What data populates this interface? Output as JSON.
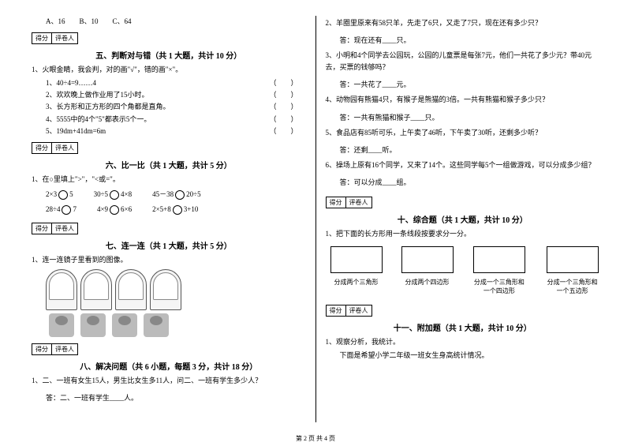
{
  "options_line": "A、16　　B、10　　C、64",
  "score_header": {
    "left": "得分",
    "right": "评卷人"
  },
  "sec5": {
    "title": "五、判断对与错（共 1 大题，共计 10 分）",
    "q1": "1、火眼金睛，我会判，对的画\"√\"，错的画\"×\"。",
    "items": [
      "1、40÷4=9……4",
      "2、欢欢晚上做作业用了15小时。",
      "3、长方形和正方形的四个角都是直角。",
      "4、5555中的4个\"5\"都表示5个一。",
      "5、19dm+41dm=6m"
    ]
  },
  "sec6": {
    "title": "六、比一比（共 1 大题，共计 5 分）",
    "q1": "1、在○里填上\">\"，\"<或=\"。",
    "row1": [
      "2×3 ○ 5",
      "30÷5 ○ 4×8",
      "45－38 ○ 20÷5"
    ],
    "row2": [
      "28÷4 ○ 7",
      "4×9 ○ 6×6",
      "2×5+8 ○ 3+10"
    ]
  },
  "sec7": {
    "title": "七、连一连（共 1 大题，共计 5 分）",
    "q1": "1、连一连镜子里看到的图像。"
  },
  "sec8": {
    "title": "八、解决问题（共 6 小题，每题 3 分，共计 18 分）",
    "q1": "1、二、一班有女生15人，男生比女生多11人，问二、一班有学生多少人？",
    "a1": "答：二、一班有学生____人。"
  },
  "right": {
    "q2": "2、羊圈里原来有58只羊，先走了6只，又走了7只，现在还有多少只？",
    "a2": "答：现在还有____只。",
    "q3": "3、小明和4个同学去公园玩，公园的儿童票是每张7元，他们一共花了多少元？带40元去，买票的钱够吗？",
    "a3": "答：一共花了____元。",
    "q4": "4、动物园有熊猫4只，有猴子是熊猫的3倍。一共有熊猫和猴子多少只？",
    "a4": "答：一共有熊猫和猴子____只。",
    "q5": "5、食品店有85听可乐，上午卖了46听，下午卖了30听，还剩多少听？",
    "a5": "答：还剩____听。",
    "q6": "6、操场上原有16个同学，又来了14个。这些同学每5个一组做游戏，可以分成多少组？",
    "a6": "答：可以分成____组。"
  },
  "sec10": {
    "title": "十、综合题（共 1 大题，共计 10 分）",
    "q1": "1、把下面的长方形用一条线段按要求分一分。",
    "labels": [
      "分成两个三角形",
      "分成两个四边形",
      "分成一个三角形和一个四边形",
      "分成一个三角形和一个五边形"
    ]
  },
  "sec11": {
    "title": "十一、附加题（共 1 大题，共计 10 分）",
    "q1": "1、观察分析，我统计。",
    "sub": "下面是希望小学二年级一班女生身高统计情况。"
  },
  "footer": "第 2 页 共 4 页"
}
